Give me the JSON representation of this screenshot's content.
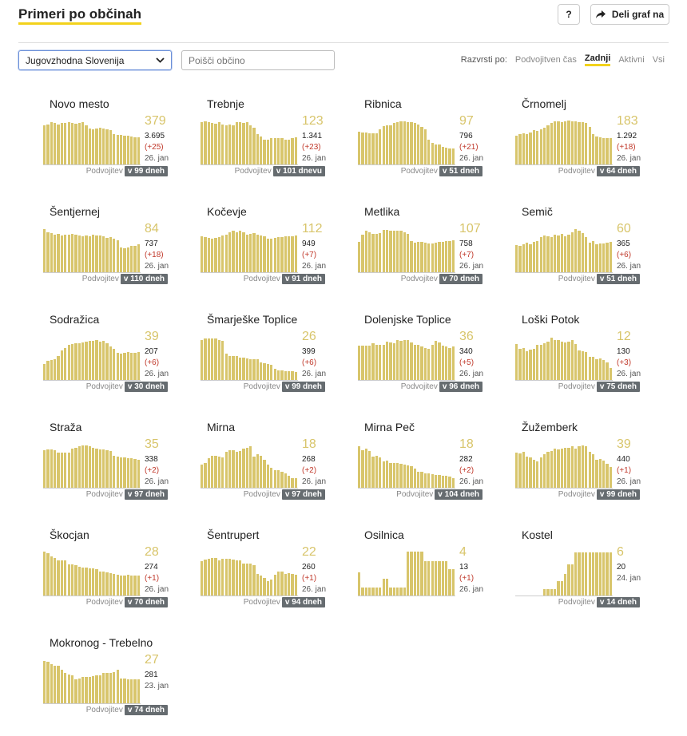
{
  "header": {
    "title": "Primeri po občinah",
    "help_label": "?",
    "share_label": "Deli graf na"
  },
  "filters": {
    "region_selected": "Jugovzhodna Slovenija",
    "search_placeholder": "Poišči občino",
    "sort_label": "Razvrsti po:",
    "sort_options": [
      "Podvojitven čas",
      "Zadnji",
      "Aktivni",
      "Vsi"
    ],
    "sort_active": "Zadnji"
  },
  "doubling_label": "Podvojitev",
  "colors": {
    "bar": "#d8c56b",
    "accent": "#f2d21b",
    "badge": "#666c70",
    "delta": "#c0392b"
  },
  "cards": [
    {
      "name": "Novo mesto",
      "value": "379",
      "total": "3.695",
      "delta": "(+25)",
      "date": "26. jan",
      "days": "v 99 dneh",
      "bars": [
        0.9,
        0.92,
        0.96,
        0.94,
        0.92,
        0.95,
        0.94,
        0.96,
        0.95,
        0.93,
        0.95,
        0.96,
        0.9,
        0.82,
        0.8,
        0.82,
        0.84,
        0.82,
        0.8,
        0.78,
        0.7,
        0.68,
        0.68,
        0.66,
        0.66,
        0.64,
        0.62,
        0.62
      ]
    },
    {
      "name": "Trebnje",
      "value": "123",
      "total": "1.341",
      "delta": "(+23)",
      "date": "26. jan",
      "days": "v 101 dnevu",
      "bars": [
        0.96,
        0.98,
        0.96,
        0.94,
        0.93,
        0.96,
        0.92,
        0.9,
        0.92,
        0.9,
        0.96,
        0.96,
        0.95,
        0.97,
        0.9,
        0.84,
        0.7,
        0.64,
        0.58,
        0.58,
        0.6,
        0.6,
        0.6,
        0.6,
        0.58,
        0.58,
        0.6,
        0.62
      ]
    },
    {
      "name": "Ribnica",
      "value": "97",
      "total": "796",
      "delta": "(+21)",
      "date": "26. jan",
      "days": "v 51 dneh",
      "bars": [
        0.75,
        0.74,
        0.74,
        0.72,
        0.72,
        0.72,
        0.8,
        0.88,
        0.9,
        0.9,
        0.94,
        0.96,
        0.98,
        0.98,
        0.96,
        0.96,
        0.94,
        0.92,
        0.86,
        0.8,
        0.58,
        0.5,
        0.46,
        0.46,
        0.42,
        0.4,
        0.38,
        0.38
      ]
    },
    {
      "name": "Črnomelj",
      "value": "183",
      "total": "1.292",
      "delta": "(+18)",
      "date": "26. jan",
      "days": "v 64 dneh",
      "bars": [
        0.66,
        0.7,
        0.72,
        0.7,
        0.74,
        0.78,
        0.76,
        0.8,
        0.84,
        0.9,
        0.94,
        0.98,
        0.98,
        0.96,
        0.98,
        1.0,
        0.98,
        0.98,
        0.96,
        0.96,
        0.94,
        0.86,
        0.7,
        0.64,
        0.62,
        0.6,
        0.6,
        0.6
      ]
    },
    {
      "name": "Šentjernej",
      "value": "84",
      "total": "737",
      "delta": "(+18)",
      "date": "26. jan",
      "days": "v 110 dneh",
      "bars": [
        0.98,
        0.92,
        0.9,
        0.86,
        0.88,
        0.84,
        0.86,
        0.86,
        0.88,
        0.86,
        0.84,
        0.82,
        0.84,
        0.82,
        0.86,
        0.84,
        0.84,
        0.82,
        0.78,
        0.8,
        0.76,
        0.74,
        0.58,
        0.56,
        0.58,
        0.6,
        0.6,
        0.64
      ]
    },
    {
      "name": "Kočevje",
      "value": "112",
      "total": "949",
      "delta": "(+7)",
      "date": "26. jan",
      "days": "v 91 dneh",
      "bars": [
        0.82,
        0.8,
        0.78,
        0.76,
        0.78,
        0.8,
        0.84,
        0.86,
        0.92,
        0.94,
        0.92,
        0.94,
        0.92,
        0.86,
        0.88,
        0.9,
        0.86,
        0.84,
        0.82,
        0.76,
        0.76,
        0.78,
        0.8,
        0.8,
        0.82,
        0.82,
        0.82,
        0.84
      ]
    },
    {
      "name": "Metlika",
      "value": "107",
      "total": "758",
      "delta": "(+7)",
      "date": "26. jan",
      "days": "v 70 dneh",
      "bars": [
        0.7,
        0.86,
        0.94,
        0.92,
        0.88,
        0.88,
        0.9,
        0.96,
        0.96,
        0.94,
        0.94,
        0.94,
        0.94,
        0.92,
        0.88,
        0.72,
        0.68,
        0.7,
        0.7,
        0.68,
        0.66,
        0.66,
        0.68,
        0.7,
        0.7,
        0.72,
        0.72,
        0.74
      ]
    },
    {
      "name": "Semič",
      "value": "60",
      "total": "365",
      "delta": "(+6)",
      "date": "26. jan",
      "days": "v 51 dneh",
      "bars": [
        0.62,
        0.6,
        0.64,
        0.68,
        0.64,
        0.7,
        0.72,
        0.8,
        0.84,
        0.82,
        0.8,
        0.86,
        0.84,
        0.88,
        0.82,
        0.86,
        0.92,
        0.98,
        0.94,
        0.9,
        0.8,
        0.68,
        0.72,
        0.64,
        0.66,
        0.66,
        0.68,
        0.7
      ]
    },
    {
      "name": "Sodražica",
      "value": "39",
      "total": "207",
      "delta": "(+6)",
      "date": "26. jan",
      "days": "v 30 dneh",
      "bars": [
        0.38,
        0.44,
        0.46,
        0.48,
        0.56,
        0.68,
        0.74,
        0.8,
        0.82,
        0.84,
        0.84,
        0.86,
        0.88,
        0.9,
        0.9,
        0.92,
        0.88,
        0.9,
        0.84,
        0.76,
        0.72,
        0.62,
        0.6,
        0.62,
        0.64,
        0.62,
        0.62,
        0.64
      ]
    },
    {
      "name": "Šmarješke Toplice",
      "value": "26",
      "total": "399",
      "delta": "(+6)",
      "date": "26. jan",
      "days": "v 99 dneh",
      "bars": [
        0.92,
        0.94,
        0.94,
        0.94,
        0.94,
        0.92,
        0.9,
        0.6,
        0.56,
        0.56,
        0.56,
        0.52,
        0.52,
        0.5,
        0.48,
        0.48,
        0.48,
        0.42,
        0.4,
        0.38,
        0.36,
        0.26,
        0.24,
        0.24,
        0.22,
        0.22,
        0.22,
        0.2
      ]
    },
    {
      "name": "Dolenjske Toplice",
      "value": "36",
      "total": "340",
      "delta": "(+5)",
      "date": "26. jan",
      "days": "v 96 dneh",
      "bars": [
        0.78,
        0.78,
        0.78,
        0.78,
        0.84,
        0.8,
        0.8,
        0.8,
        0.88,
        0.86,
        0.84,
        0.92,
        0.9,
        0.92,
        0.92,
        0.86,
        0.8,
        0.8,
        0.76,
        0.74,
        0.72,
        0.8,
        0.9,
        0.86,
        0.78,
        0.76,
        0.74,
        0.76
      ]
    },
    {
      "name": "Loški Potok",
      "value": "12",
      "total": "130",
      "delta": "(+3)",
      "date": "26. jan",
      "days": "v 75 dneh",
      "bars": [
        0.82,
        0.72,
        0.74,
        0.66,
        0.7,
        0.72,
        0.8,
        0.8,
        0.84,
        0.88,
        0.96,
        0.92,
        0.92,
        0.88,
        0.86,
        0.88,
        0.92,
        0.82,
        0.68,
        0.66,
        0.64,
        0.54,
        0.54,
        0.48,
        0.5,
        0.46,
        0.42,
        0.28
      ]
    },
    {
      "name": "Straža",
      "value": "35",
      "total": "338",
      "delta": "(+2)",
      "date": "26. jan",
      "days": "v 97 dneh",
      "bars": [
        0.86,
        0.88,
        0.88,
        0.86,
        0.8,
        0.8,
        0.8,
        0.8,
        0.9,
        0.92,
        0.94,
        0.96,
        0.96,
        0.94,
        0.92,
        0.9,
        0.88,
        0.88,
        0.86,
        0.84,
        0.74,
        0.72,
        0.7,
        0.7,
        0.68,
        0.68,
        0.66,
        0.64
      ]
    },
    {
      "name": "Mirna",
      "value": "18",
      "total": "268",
      "delta": "(+2)",
      "date": "26. jan",
      "days": "v 97 dneh",
      "bars": [
        0.54,
        0.58,
        0.68,
        0.74,
        0.74,
        0.72,
        0.7,
        0.82,
        0.86,
        0.86,
        0.82,
        0.84,
        0.9,
        0.92,
        0.94,
        0.72,
        0.76,
        0.74,
        0.64,
        0.54,
        0.46,
        0.42,
        0.42,
        0.38,
        0.34,
        0.28,
        0.24,
        0.24
      ]
    },
    {
      "name": "Mirna Peč",
      "value": "18",
      "total": "282",
      "delta": "(+2)",
      "date": "26. jan",
      "days": "v 104 dneh",
      "bars": [
        0.94,
        0.86,
        0.9,
        0.84,
        0.72,
        0.74,
        0.7,
        0.6,
        0.62,
        0.58,
        0.58,
        0.58,
        0.56,
        0.54,
        0.52,
        0.5,
        0.44,
        0.38,
        0.38,
        0.34,
        0.34,
        0.32,
        0.3,
        0.3,
        0.28,
        0.28,
        0.26,
        0.24
      ]
    },
    {
      "name": "Žužemberk",
      "value": "39",
      "total": "440",
      "delta": "(+1)",
      "date": "26. jan",
      "days": "v 99 dneh",
      "bars": [
        0.8,
        0.78,
        0.82,
        0.72,
        0.7,
        0.64,
        0.6,
        0.7,
        0.76,
        0.82,
        0.84,
        0.9,
        0.88,
        0.9,
        0.92,
        0.92,
        0.94,
        0.9,
        0.94,
        0.96,
        0.94,
        0.82,
        0.76,
        0.64,
        0.66,
        0.62,
        0.56,
        0.48
      ]
    },
    {
      "name": "Škocjan",
      "value": "28",
      "total": "274",
      "delta": "(+1)",
      "date": "26. jan",
      "days": "v 70 dneh",
      "bars": [
        1.0,
        0.96,
        0.9,
        0.86,
        0.8,
        0.8,
        0.8,
        0.72,
        0.72,
        0.7,
        0.66,
        0.64,
        0.64,
        0.62,
        0.62,
        0.6,
        0.56,
        0.56,
        0.54,
        0.52,
        0.5,
        0.48,
        0.46,
        0.46,
        0.48,
        0.46,
        0.46,
        0.46
      ]
    },
    {
      "name": "Šentrupert",
      "value": "22",
      "total": "260",
      "delta": "(+1)",
      "date": "26. jan",
      "days": "v 94 dneh",
      "bars": [
        0.78,
        0.82,
        0.84,
        0.86,
        0.86,
        0.8,
        0.84,
        0.84,
        0.84,
        0.82,
        0.8,
        0.8,
        0.74,
        0.74,
        0.74,
        0.7,
        0.5,
        0.46,
        0.42,
        0.34,
        0.38,
        0.48,
        0.56,
        0.56,
        0.5,
        0.52,
        0.5,
        0.48
      ]
    },
    {
      "name": "Osilnica",
      "value": "4",
      "total": "13",
      "delta": "(+1)",
      "date": "26. jan",
      "days": "",
      "bars": [
        0.54,
        0.2,
        0.2,
        0.2,
        0.2,
        0.2,
        0.2,
        0.4,
        0.4,
        0.2,
        0.2,
        0.2,
        0.2,
        0.2,
        1.0,
        1.0,
        1.0,
        1.0,
        1.0,
        0.78,
        0.78,
        0.78,
        0.78,
        0.78,
        0.78,
        0.78,
        0.6,
        0.6
      ]
    },
    {
      "name": "Kostel",
      "value": "6",
      "total": "20",
      "delta": "",
      "date": "24. jan",
      "days": "v 14 dneh",
      "bars": [
        0,
        0,
        0,
        0,
        0,
        0,
        0,
        0,
        0.16,
        0.16,
        0.16,
        0.16,
        0.34,
        0.34,
        0.5,
        0.72,
        0.72,
        0.98,
        0.98,
        0.98,
        0.98,
        0.98,
        0.98,
        0.98,
        0.98,
        0.98,
        0.98,
        0.98
      ]
    },
    {
      "name": "Mokronog - Trebelno",
      "value": "27",
      "total": "281",
      "delta": "",
      "date": "23. jan",
      "days": "v 74 dneh",
      "bars": [
        0.96,
        0.94,
        0.9,
        0.86,
        0.86,
        0.76,
        0.7,
        0.66,
        0.64,
        0.56,
        0.58,
        0.6,
        0.6,
        0.6,
        0.62,
        0.64,
        0.64,
        0.7,
        0.7,
        0.7,
        0.72,
        0.76,
        0.58,
        0.58,
        0.56,
        0.56,
        0.56,
        0.56
      ]
    }
  ]
}
